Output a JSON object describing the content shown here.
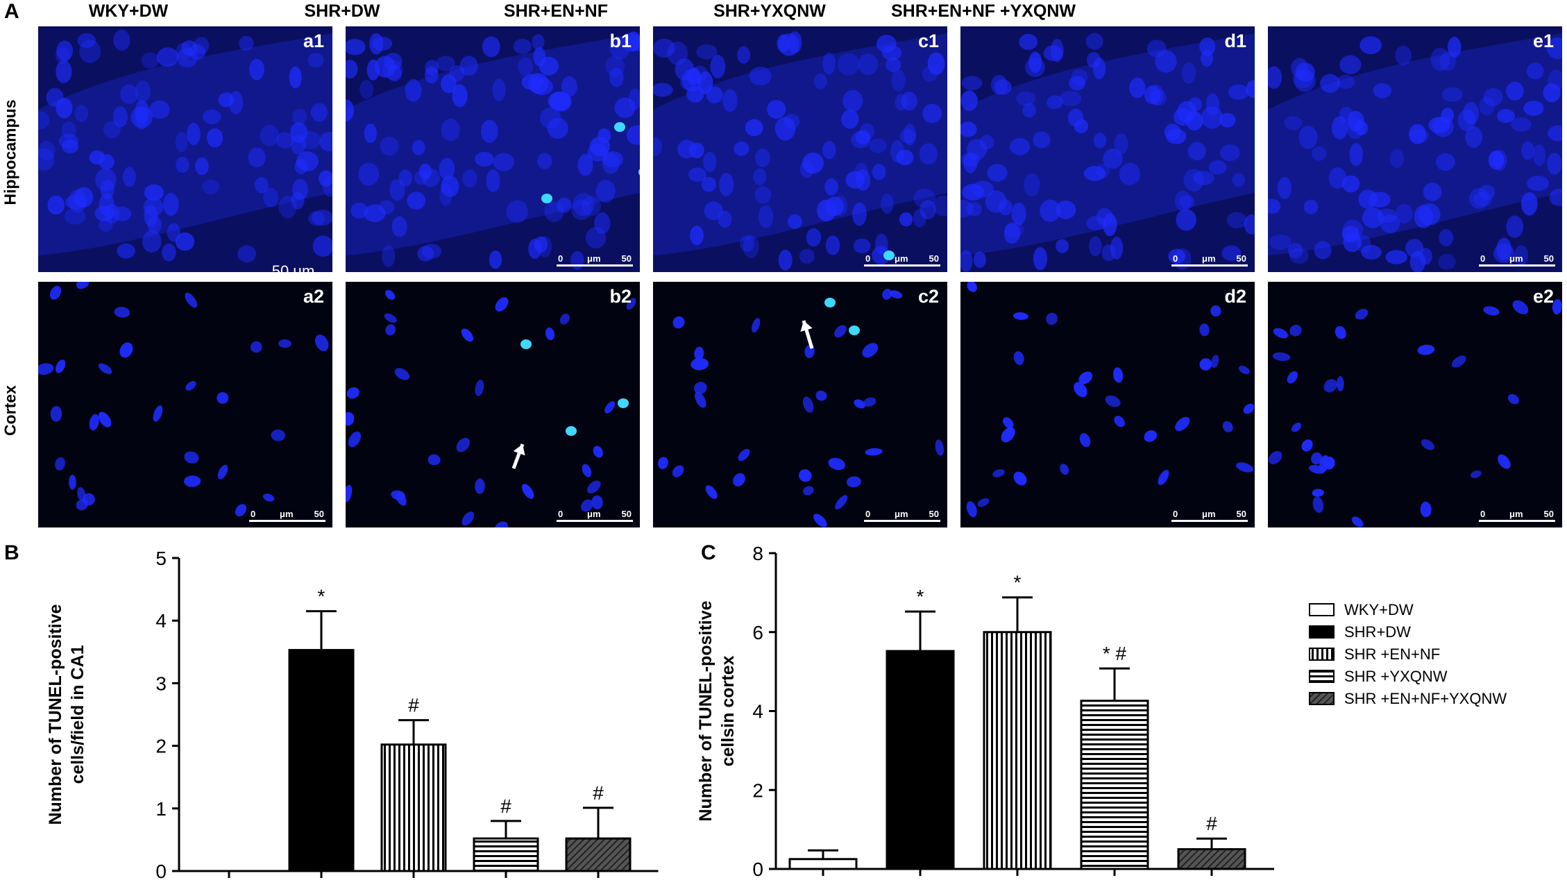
{
  "panel_a": {
    "letter": "A",
    "column_titles": [
      "WKY+DW",
      "SHR+DW",
      "SHR+EN+NF",
      "SHR+YXQNW",
      "SHR+EN+NF +YXQNW"
    ],
    "row_labels": [
      "Hippocampus",
      "Cortex"
    ],
    "sub_labels_row1": [
      "a1",
      "b1",
      "c1",
      "d1",
      "e1"
    ],
    "sub_labels_row2": [
      "a2",
      "b2",
      "c2",
      "d2",
      "e2"
    ],
    "scale_bar_main": "50 μm",
    "scale_tick_0": "0",
    "scale_tick_unit": "μm",
    "scale_tick_50": "50",
    "colors": {
      "hippocampus_bg": "#0a0f60",
      "cortex_bg": "#010310",
      "nucleus": "#1f2cff",
      "tunel_positive": "#3fd8ff",
      "arrow": "#ffffff"
    }
  },
  "chart_data": [
    {
      "panel": "B",
      "type": "bar",
      "ylabel_line1": "Number of TUNEL-positive",
      "ylabel_line2": "cells/field in CA1",
      "ylim": [
        0,
        5
      ],
      "yticks": [
        "0",
        "1",
        "2",
        "3",
        "4",
        "5"
      ],
      "categories": [
        "WKY+DW",
        "SHR+DW",
        "SHR +EN+NF",
        "SHR +YXQNW",
        "SHR +EN+NF+YXQNW"
      ],
      "values": [
        0,
        3.53,
        2.02,
        0.52,
        0.52
      ],
      "errors": [
        0,
        0.62,
        0.39,
        0.28,
        0.49
      ],
      "annotations": [
        "",
        "*",
        "#",
        "#",
        "#"
      ],
      "patterns": [
        "white",
        "black",
        "vertical",
        "horizontal",
        "diagonal"
      ]
    },
    {
      "panel": "C",
      "type": "bar",
      "ylabel_line1": "Number of TUNEL-positive",
      "ylabel_line2": "cellsin cortex",
      "ylim": [
        0,
        8
      ],
      "yticks": [
        "0",
        "2",
        "4",
        "6",
        "8"
      ],
      "categories": [
        "WKY+DW",
        "SHR+DW",
        "SHR +EN+NF",
        "SHR +YXQNW",
        "SHR +EN+NF+YXQNW"
      ],
      "values": [
        0.25,
        5.52,
        6.0,
        4.26,
        0.5
      ],
      "errors": [
        0.22,
        1.0,
        0.88,
        0.82,
        0.27
      ],
      "annotations": [
        "",
        "*",
        "*",
        "* #",
        "#"
      ],
      "patterns": [
        "white",
        "black",
        "vertical",
        "horizontal",
        "diagonal"
      ]
    }
  ],
  "legend": {
    "items": [
      "WKY+DW",
      "SHR+DW",
      "SHR +EN+NF",
      "SHR +YXQNW",
      "SHR +EN+NF+YXQNW"
    ]
  }
}
